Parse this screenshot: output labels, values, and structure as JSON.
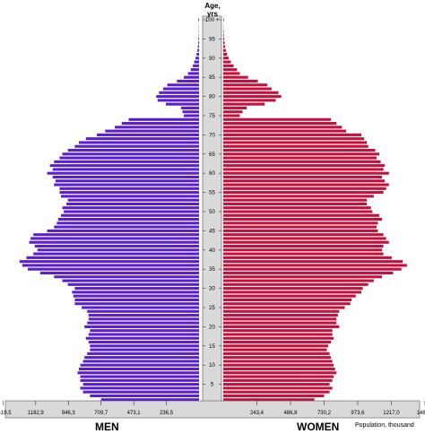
{
  "chart_data": {
    "type": "bar",
    "subtype": "population-pyramid",
    "age_axis_title": "Age,\nyrs",
    "age_ticks": [
      "0",
      "5",
      "10",
      "15",
      "20",
      "25",
      "30",
      "35",
      "40",
      "45",
      "50",
      "55",
      "60",
      "65",
      "70",
      "75",
      "80",
      "85",
      "90",
      "95",
      "100 +"
    ],
    "men_label": "MEN",
    "women_label": "WOMEN",
    "unit_label": "Population, thousand",
    "men_axis_ticks": [
      "1419,5",
      "1182,9",
      "946,3",
      "709,7",
      "473,1",
      "236,5"
    ],
    "women_axis_ticks": [
      "243,4",
      "486,8",
      "730,2",
      "973,6",
      "1217,0",
      "1460,4"
    ],
    "men_tick_values": [
      1419.5,
      1182.9,
      946.3,
      709.7,
      473.1,
      236.5
    ],
    "women_tick_values": [
      243.4,
      486.8,
      730.2,
      973.6,
      1217.0,
      1460.4
    ],
    "ages": [
      0,
      1,
      2,
      3,
      4,
      5,
      6,
      7,
      8,
      9,
      10,
      11,
      12,
      13,
      14,
      15,
      16,
      17,
      18,
      19,
      20,
      21,
      22,
      23,
      24,
      25,
      26,
      27,
      28,
      29,
      30,
      31,
      32,
      33,
      34,
      35,
      36,
      37,
      38,
      39,
      40,
      41,
      42,
      43,
      44,
      45,
      46,
      47,
      48,
      49,
      50,
      51,
      52,
      53,
      54,
      55,
      56,
      57,
      58,
      59,
      60,
      61,
      62,
      63,
      64,
      65,
      66,
      67,
      68,
      69,
      70,
      71,
      72,
      73,
      74,
      75,
      76,
      77,
      78,
      79,
      80,
      81,
      82,
      83,
      84,
      85,
      86,
      87,
      88,
      89,
      90,
      91,
      92,
      93,
      94,
      95,
      96,
      97,
      98,
      99,
      100
    ],
    "men": [
      550,
      710,
      790,
      840,
      860,
      840,
      860,
      860,
      880,
      870,
      860,
      840,
      830,
      810,
      790,
      790,
      800,
      820,
      800,
      790,
      830,
      810,
      800,
      800,
      810,
      850,
      900,
      900,
      910,
      920,
      900,
      950,
      990,
      1050,
      1150,
      1240,
      1280,
      1300,
      1250,
      1200,
      1170,
      1190,
      1230,
      1220,
      1200,
      1100,
      1050,
      1030,
      1020,
      1000,
      980,
      990,
      960,
      950,
      1000,
      1010,
      1010,
      1050,
      1040,
      1060,
      1100,
      1060,
      1080,
      1050,
      1010,
      990,
      950,
      900,
      870,
      820,
      740,
      680,
      610,
      560,
      510,
      110,
      120,
      130,
      240,
      300,
      310,
      290,
      260,
      230,
      160,
      110,
      80,
      60,
      45,
      35,
      25,
      18,
      12,
      9,
      6,
      5,
      3,
      2,
      2,
      1,
      5
    ],
    "women": [
      510,
      660,
      730,
      770,
      790,
      770,
      790,
      800,
      820,
      810,
      800,
      790,
      780,
      770,
      750,
      760,
      780,
      800,
      790,
      790,
      840,
      820,
      820,
      830,
      840,
      880,
      920,
      930,
      960,
      1000,
      1010,
      1050,
      1090,
      1150,
      1230,
      1290,
      1330,
      1300,
      1220,
      1160,
      1150,
      1160,
      1200,
      1180,
      1160,
      1120,
      1110,
      1120,
      1150,
      1130,
      1080,
      1070,
      1040,
      1040,
      1090,
      1160,
      1180,
      1200,
      1170,
      1150,
      1200,
      1160,
      1170,
      1140,
      1110,
      1130,
      1100,
      1050,
      1040,
      1020,
      1000,
      890,
      860,
      820,
      780,
      120,
      140,
      170,
      300,
      380,
      420,
      400,
      350,
      320,
      250,
      180,
      120,
      100,
      75,
      55,
      40,
      28,
      20,
      14,
      10,
      7,
      5,
      3,
      2,
      1,
      5
    ],
    "colors": {
      "men": "#5a1ed2",
      "women": "#c80f3c",
      "axis_bg": "#d9d9d9"
    }
  }
}
